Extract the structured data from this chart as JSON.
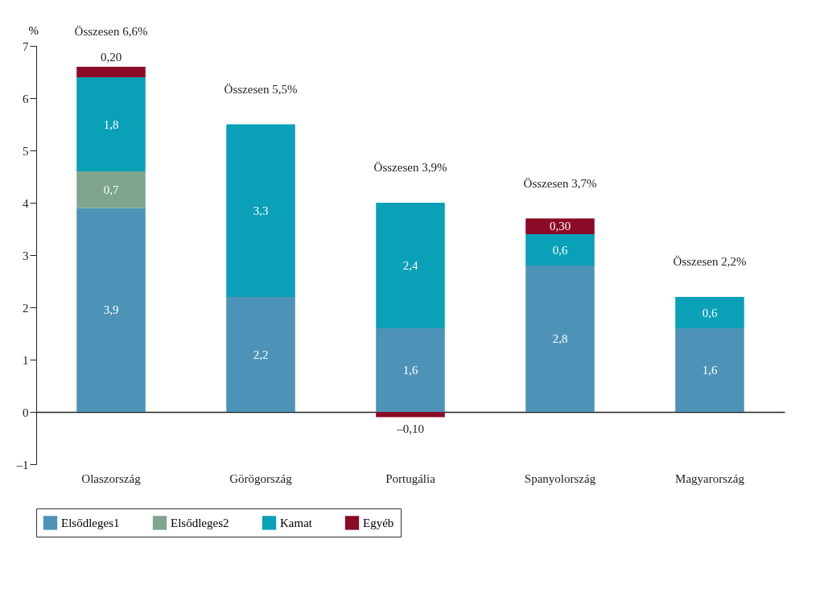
{
  "chart_data": {
    "type": "bar",
    "stacked": true,
    "ylabel": "%",
    "categories": [
      "Olaszország",
      "Görögország",
      "Portugália",
      "Spanyolország",
      "Magyarország"
    ],
    "series": [
      {
        "name": "Elsődleges1",
        "color": "#4d93b8",
        "values": [
          3.9,
          2.2,
          1.6,
          2.8,
          1.6
        ],
        "value_labels": [
          "3,9",
          "2,2",
          "1,6",
          "2,8",
          "1,6"
        ]
      },
      {
        "name": "Elsődleges2",
        "color": "#7fa58f",
        "values": [
          0.7,
          null,
          null,
          null,
          null
        ],
        "value_labels": [
          "0,7",
          null,
          null,
          null,
          null
        ]
      },
      {
        "name": "Kamat",
        "color": "#0aa0b8",
        "values": [
          1.8,
          3.3,
          2.4,
          0.6,
          0.6
        ],
        "value_labels": [
          "1,8",
          "3,3",
          "2,4",
          "0,6",
          "0,6"
        ]
      },
      {
        "name": "Egyéb",
        "color": "#8b0a25",
        "values": [
          0.2,
          null,
          -0.1,
          0.3,
          null
        ],
        "value_labels": [
          "0,20",
          null,
          "–0,10",
          "0,30",
          null
        ]
      }
    ],
    "totals": [
      "Összesen 6,6%",
      "Összesen 5,5%",
      "Összesen 3,9%",
      "Összesen 3,7%",
      "Összesen 2,2%"
    ],
    "ylim": [
      -1,
      7
    ],
    "yticks": [
      {
        "value": -1,
        "label": "–1"
      },
      0,
      1,
      2,
      3,
      4,
      5,
      6,
      7
    ],
    "legend": "bottom"
  }
}
